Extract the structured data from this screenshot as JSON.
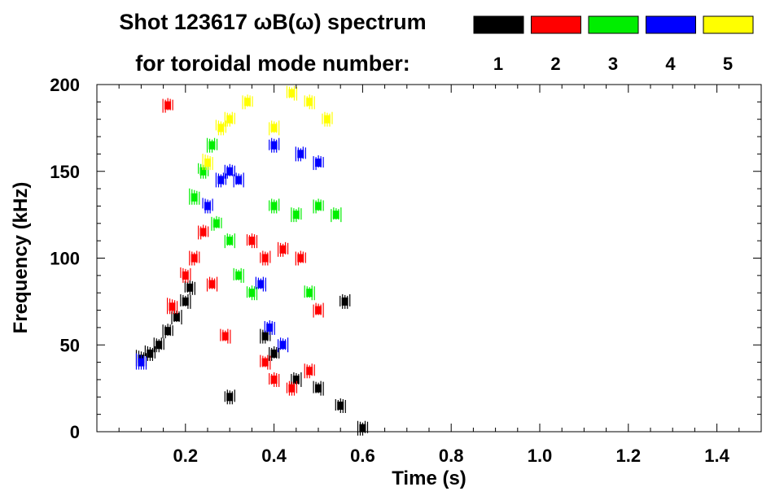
{
  "chart_data": {
    "type": "scatter",
    "title_line1": "Shot 123617 ωB(ω) spectrum",
    "title_line2": "for toroidal mode number:",
    "xlabel": "Time (s)",
    "ylabel": "Frequency (kHz)",
    "xlim": [
      0.0,
      1.5
    ],
    "ylim": [
      0,
      200
    ],
    "x_ticks": [
      0.2,
      0.4,
      0.6,
      0.8,
      1.0,
      1.2,
      1.4
    ],
    "x_tick_labels": [
      "0.2",
      "0.4",
      "0.6",
      "0.8",
      "1.0",
      "1.2",
      "1.4"
    ],
    "y_ticks": [
      0,
      50,
      100,
      150,
      200
    ],
    "y_tick_labels": [
      "0",
      "50",
      "100",
      "150",
      "200"
    ],
    "legend": [
      {
        "label": "1",
        "color": "#000000"
      },
      {
        "label": "2",
        "color": "#ff0000"
      },
      {
        "label": "3",
        "color": "#00ee00"
      },
      {
        "label": "4",
        "color": "#0000ff"
      },
      {
        "label": "5",
        "color": "#ffff00"
      }
    ],
    "legend_placement": "top-right",
    "grid": false,
    "regions": [
      {
        "mode": 1,
        "color": "#000000",
        "points": [
          [
            0.1,
            42
          ],
          [
            0.12,
            45
          ],
          [
            0.14,
            50
          ],
          [
            0.16,
            58
          ],
          [
            0.18,
            66
          ],
          [
            0.2,
            75
          ],
          [
            0.21,
            83
          ],
          [
            0.3,
            20
          ],
          [
            0.38,
            55
          ],
          [
            0.4,
            45
          ],
          [
            0.45,
            30
          ],
          [
            0.5,
            25
          ],
          [
            0.55,
            15
          ],
          [
            0.56,
            75
          ],
          [
            0.6,
            2
          ]
        ]
      },
      {
        "mode": 2,
        "color": "#ff0000",
        "points": [
          [
            0.17,
            72
          ],
          [
            0.2,
            90
          ],
          [
            0.22,
            100
          ],
          [
            0.24,
            115
          ],
          [
            0.26,
            85
          ],
          [
            0.29,
            55
          ],
          [
            0.35,
            110
          ],
          [
            0.38,
            100
          ],
          [
            0.42,
            105
          ],
          [
            0.46,
            100
          ],
          [
            0.5,
            70
          ],
          [
            0.38,
            40
          ],
          [
            0.4,
            30
          ],
          [
            0.44,
            25
          ],
          [
            0.48,
            35
          ],
          [
            0.16,
            188
          ]
        ]
      },
      {
        "mode": 3,
        "color": "#00ee00",
        "points": [
          [
            0.22,
            135
          ],
          [
            0.24,
            150
          ],
          [
            0.26,
            165
          ],
          [
            0.27,
            120
          ],
          [
            0.3,
            110
          ],
          [
            0.32,
            90
          ],
          [
            0.35,
            80
          ],
          [
            0.4,
            130
          ],
          [
            0.45,
            125
          ],
          [
            0.5,
            130
          ],
          [
            0.54,
            125
          ],
          [
            0.48,
            80
          ]
        ]
      },
      {
        "mode": 4,
        "color": "#0000ff",
        "points": [
          [
            0.1,
            40
          ],
          [
            0.25,
            130
          ],
          [
            0.28,
            145
          ],
          [
            0.3,
            150
          ],
          [
            0.32,
            145
          ],
          [
            0.37,
            85
          ],
          [
            0.39,
            60
          ],
          [
            0.4,
            165
          ],
          [
            0.46,
            160
          ],
          [
            0.5,
            155
          ],
          [
            0.42,
            50
          ]
        ]
      },
      {
        "mode": 5,
        "color": "#ffff00",
        "points": [
          [
            0.25,
            155
          ],
          [
            0.28,
            175
          ],
          [
            0.3,
            180
          ],
          [
            0.34,
            190
          ],
          [
            0.4,
            175
          ],
          [
            0.44,
            195
          ],
          [
            0.48,
            190
          ],
          [
            0.52,
            180
          ]
        ]
      }
    ]
  }
}
